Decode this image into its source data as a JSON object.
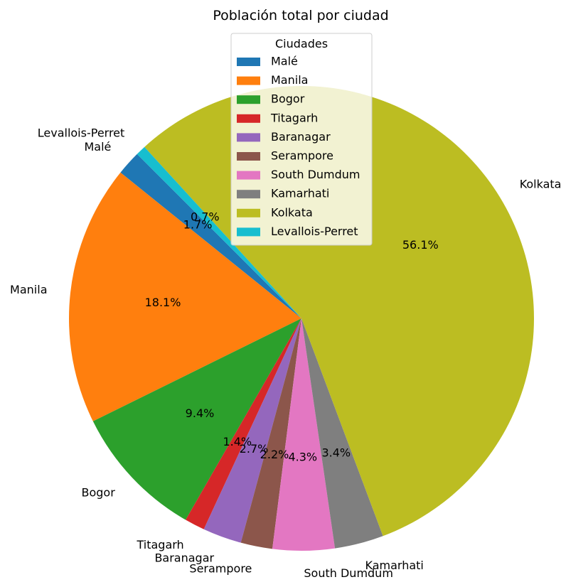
{
  "chart_data": {
    "type": "pie",
    "title": "Población total por ciudad",
    "legend_title": "Ciudades",
    "legend_location": "upper center",
    "start_angle_deg": 135,
    "direction": "counterclockwise",
    "slices": [
      {
        "label": "Malé",
        "percent": 1.7,
        "pct_label": "1.7%",
        "color": "#1f77b4"
      },
      {
        "label": "Manila",
        "percent": 18.1,
        "pct_label": "18.1%",
        "color": "#ff7f0e"
      },
      {
        "label": "Bogor",
        "percent": 9.4,
        "pct_label": "9.4%",
        "color": "#2ca02c"
      },
      {
        "label": "Titagarh",
        "percent": 1.4,
        "pct_label": "1.4%",
        "color": "#d62728"
      },
      {
        "label": "Baranagar",
        "percent": 2.7,
        "pct_label": "2.7%",
        "color": "#9467bd"
      },
      {
        "label": "Serampore",
        "percent": 2.2,
        "pct_label": "2.2%",
        "color": "#8c564b"
      },
      {
        "label": "South Dumdum",
        "percent": 4.3,
        "pct_label": "4.3%",
        "color": "#e377c2"
      },
      {
        "label": "Kamarhati",
        "percent": 3.4,
        "pct_label": "3.4%",
        "color": "#7f7f7f"
      },
      {
        "label": "Kolkata",
        "percent": 56.1,
        "pct_label": "56.1%",
        "color": "#bcbd22"
      },
      {
        "label": "Levallois-Perret",
        "percent": 0.7,
        "pct_label": "0.7%",
        "color": "#17becf"
      }
    ]
  }
}
